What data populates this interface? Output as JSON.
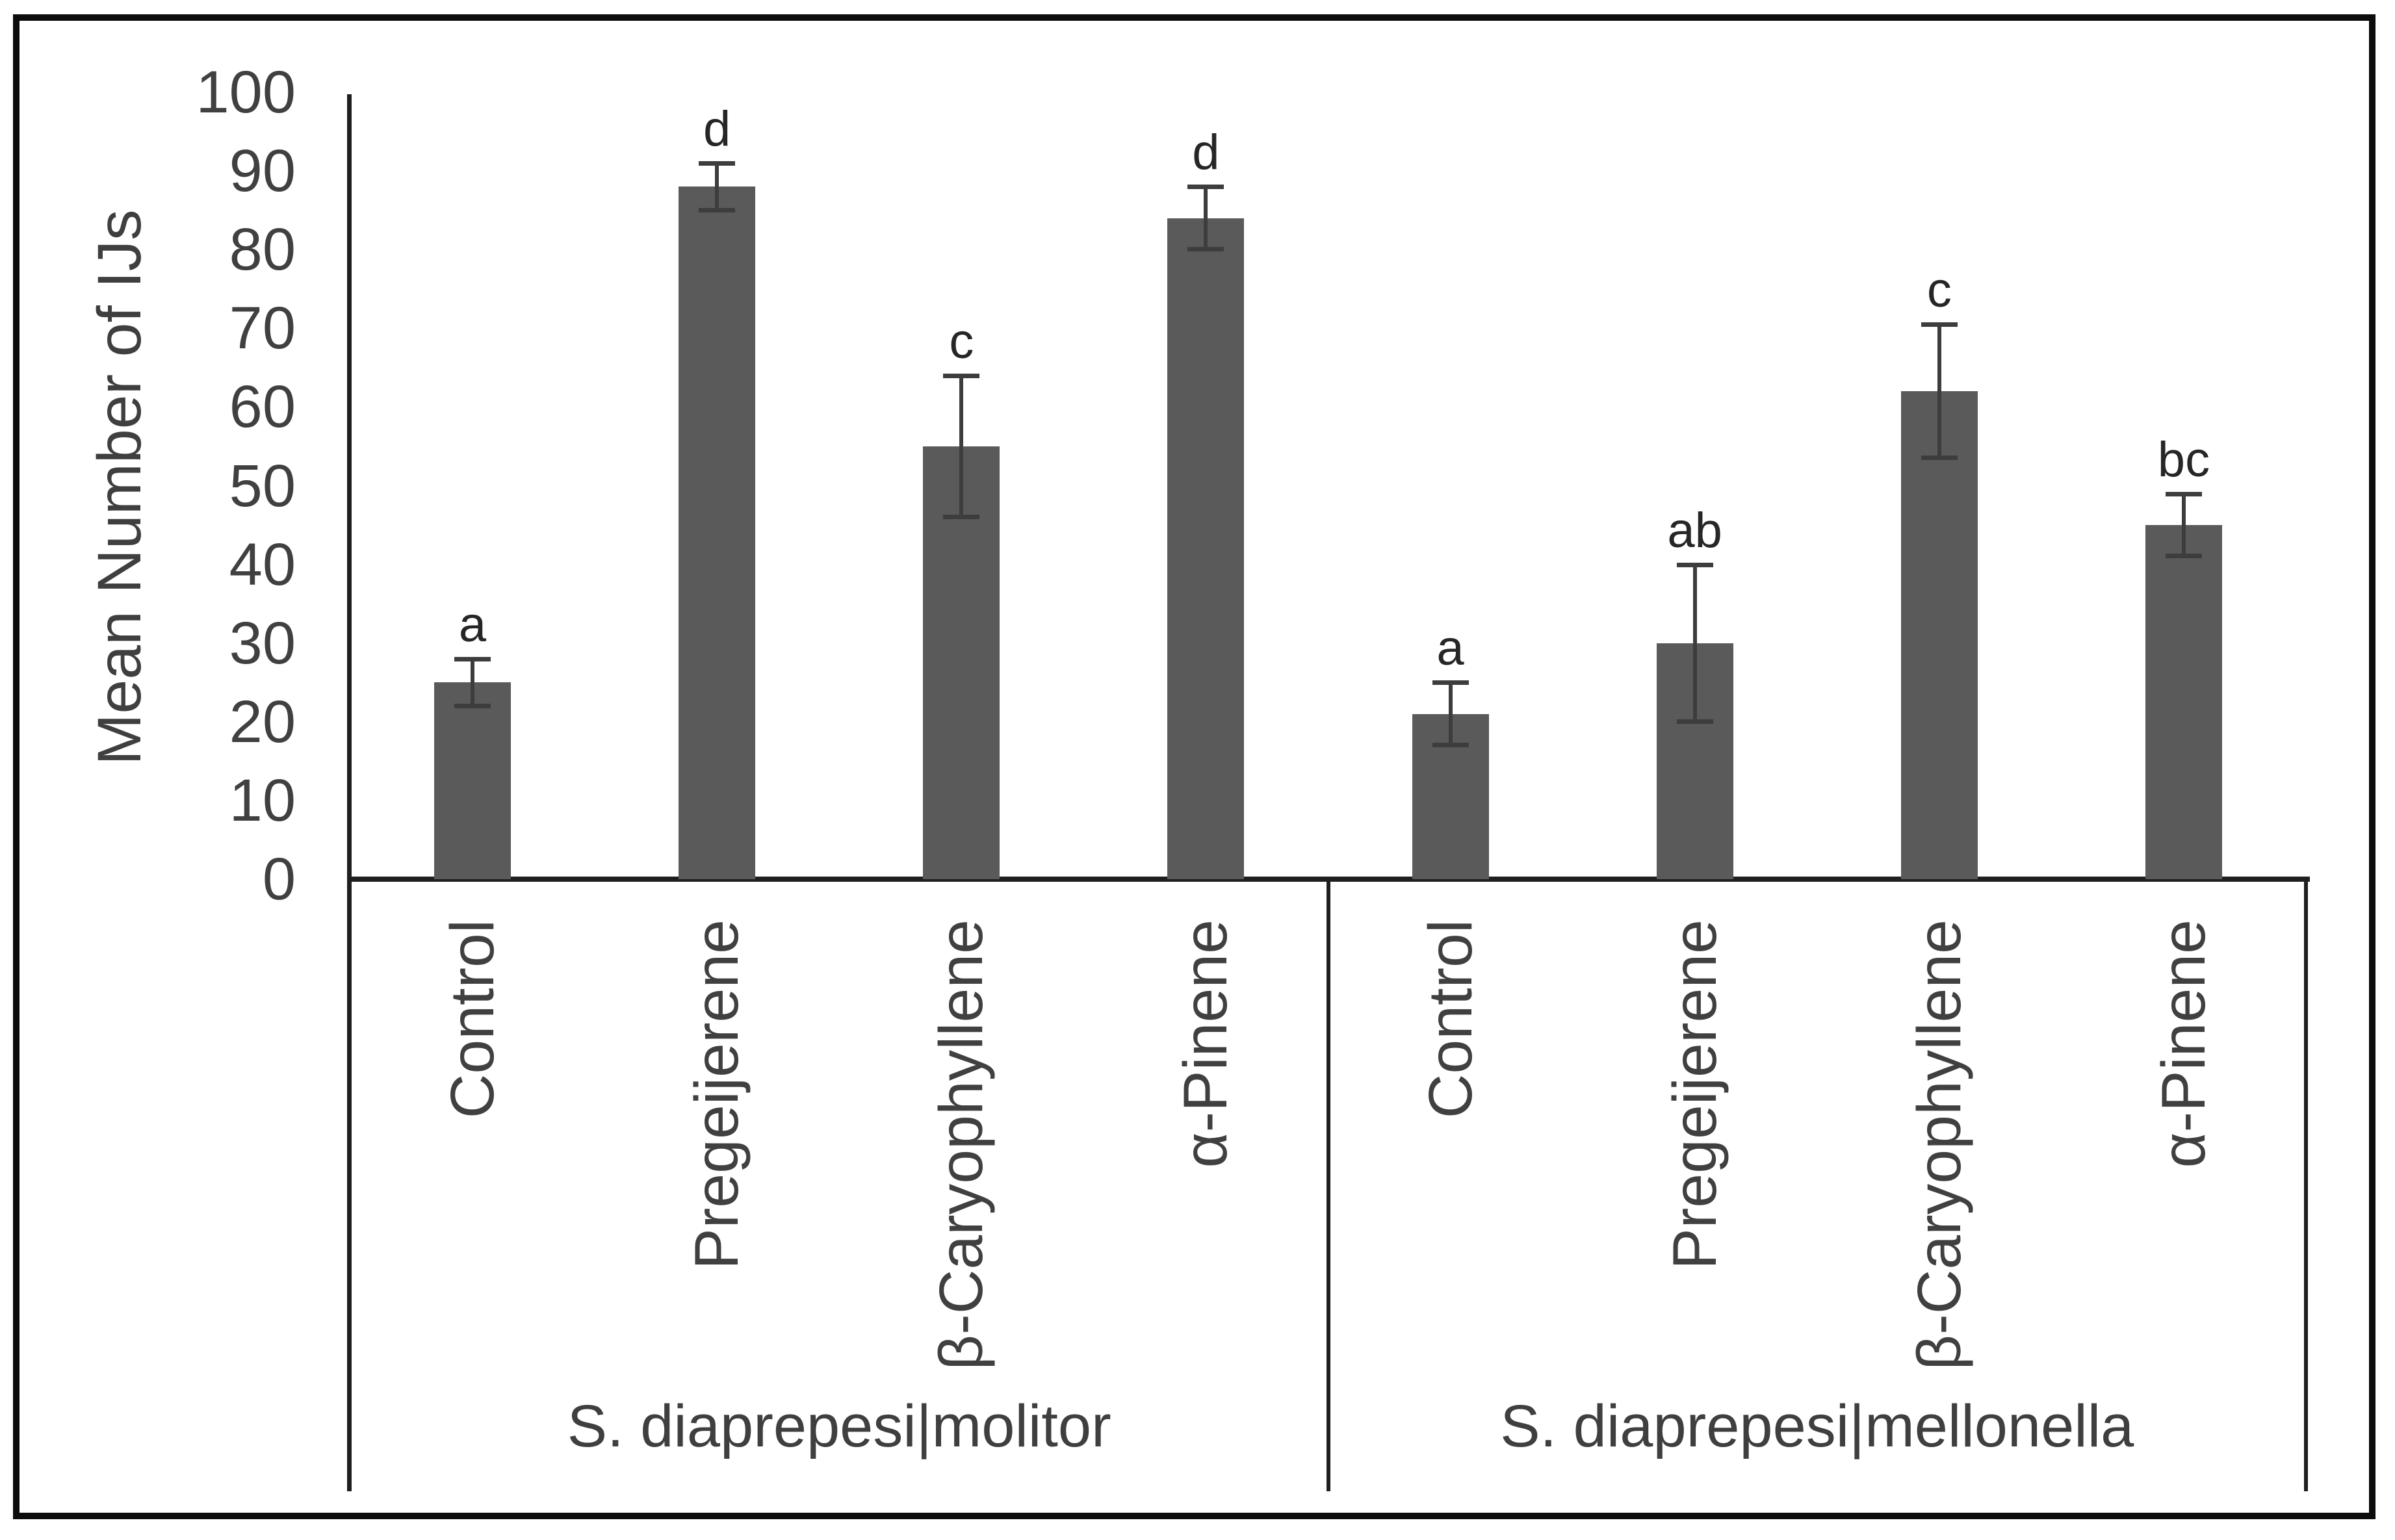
{
  "figure": {
    "background": "#ffffff",
    "border_color": "#0d0d0d"
  },
  "chart_data": {
    "type": "bar",
    "title": "",
    "xlabel": "",
    "ylabel": "Mean Number of IJs",
    "ylim": [
      0,
      100
    ],
    "ytick_step": 10,
    "yticks": [
      0,
      10,
      20,
      30,
      40,
      50,
      60,
      70,
      80,
      90,
      100
    ],
    "grid": false,
    "legend": false,
    "groups": [
      {
        "label": "S. diaprepesi|molitor",
        "categories": [
          "Control",
          "Pregeijerene",
          "β-Caryophyllene",
          "α-Pinene"
        ],
        "values": [
          25,
          88,
          55,
          84
        ],
        "errors": [
          3,
          3,
          9,
          4
        ],
        "sig_letters": [
          "a",
          "d",
          "c",
          "d"
        ]
      },
      {
        "label": "S. diaprepesi|mellonella",
        "categories": [
          "Control",
          "Pregeijerene",
          "β-Caryophyllene",
          "α-Pinene"
        ],
        "values": [
          21,
          30,
          62,
          45
        ],
        "errors": [
          4,
          10,
          8.5,
          4
        ],
        "sig_letters": [
          "a",
          "ab",
          "c",
          "bc"
        ]
      }
    ],
    "colors": {
      "bar": "#5a5a5a",
      "error_bar": "#3d3d3d",
      "axis": "#1f1f1f",
      "tick_text": "#404040",
      "category_text": "#404040",
      "group_text": "#3f3f3f",
      "letter_text": "#262626",
      "ylabel_text": "#3f3f3f"
    }
  }
}
